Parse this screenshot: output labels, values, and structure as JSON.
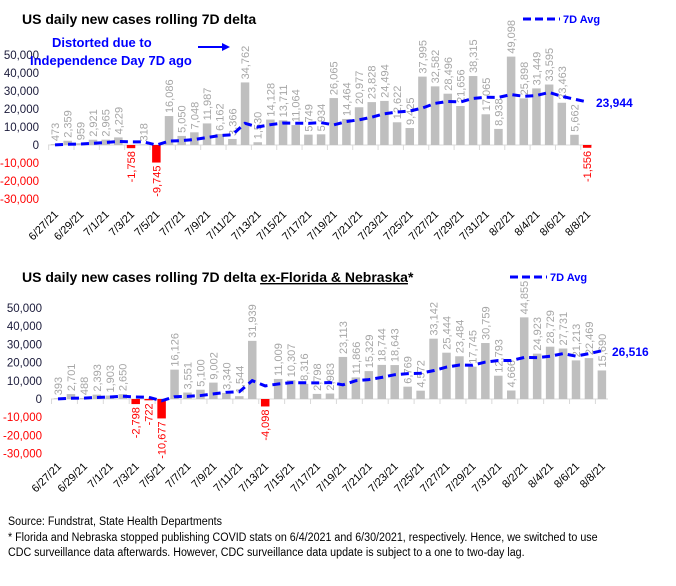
{
  "colors": {
    "positive_bar": "#bfbfbf",
    "negative_bar": "#ff0000",
    "avg_line": "#0000ff",
    "data_label": "#a6a6a6",
    "negative_label": "#ff0000"
  },
  "chart_data": [
    {
      "type": "bar",
      "title": "US daily new cases rolling 7D delta",
      "title_underlined": "",
      "title_suffix": "",
      "annotation": [
        "Distorted due to",
        "Independence Day 7D ago"
      ],
      "legend": "7D Avg",
      "avg_end_label": "23,944",
      "ylim": [
        -30000,
        50000
      ],
      "yticks": [
        "50,000",
        "40,000",
        "30,000",
        "20,000",
        "10,000",
        "0",
        "-10,000",
        "-20,000",
        "-30,000"
      ],
      "ytick_values": [
        50000,
        40000,
        30000,
        20000,
        10000,
        0,
        -10000,
        -20000,
        -30000
      ],
      "categories": [
        "6/27/21",
        "6/28/21",
        "6/29/21",
        "6/30/21",
        "7/1/21",
        "7/2/21",
        "7/3/21",
        "7/4/21",
        "7/5/21",
        "7/6/21",
        "7/7/21",
        "7/8/21",
        "7/9/21",
        "7/10/21",
        "7/11/21",
        "7/12/21",
        "7/13/21",
        "7/14/21",
        "7/15/21",
        "7/16/21",
        "7/17/21",
        "7/18/21",
        "7/19/21",
        "7/20/21",
        "7/21/21",
        "7/22/21",
        "7/23/21",
        "7/24/21",
        "7/25/21",
        "7/26/21",
        "7/27/21",
        "7/28/21",
        "7/29/21",
        "7/30/21",
        "7/31/21",
        "8/1/21",
        "8/2/21",
        "8/3/21",
        "8/4/21",
        "8/5/21",
        "8/6/21",
        "8/7/21",
        "8/8/21"
      ],
      "values": [
        473,
        2359,
        959,
        2921,
        2965,
        4229,
        -1758,
        318,
        -9745,
        16086,
        5050,
        7048,
        11987,
        6162,
        3366,
        34762,
        1530,
        14128,
        13711,
        11064,
        5749,
        5934,
        26065,
        14464,
        20977,
        23828,
        24494,
        12622,
        9425,
        37995,
        32582,
        28496,
        21656,
        38315,
        17065,
        8938,
        49098,
        25898,
        31449,
        33595,
        23463,
        5662,
        -1556
      ],
      "labels": [
        "473",
        "2,359",
        "959",
        "2,921",
        "2,965",
        "4,229",
        "-1,758",
        "318",
        "-9,745",
        "16,086",
        "5,050",
        "7,048",
        "11,987",
        "6,162",
        "3,366",
        "34,762",
        "1,530",
        "14,128",
        "13,711",
        "11,064",
        "5,749",
        "5,934",
        "26,065",
        "14,464",
        "20,977",
        "23,828",
        "24,494",
        "12,622",
        "9,425",
        "37,995",
        "32,582",
        "28,496",
        "21,656",
        "38,315",
        "17,065",
        "8,938",
        "49,098",
        "25,898",
        "31,449",
        "33,595",
        "23,463",
        "5,662",
        "-1,556"
      ]
    },
    {
      "type": "bar",
      "title": "US daily new cases rolling 7D delta ",
      "title_underlined": "ex-Florida & Nebraska",
      "title_suffix": "*",
      "annotation": [],
      "legend": "7D Avg",
      "avg_end_label": "26,516",
      "ylim": [
        -30000,
        50000
      ],
      "yticks": [
        "50,000",
        "40,000",
        "30,000",
        "20,000",
        "10,000",
        "0",
        "-10,000",
        "-20,000",
        "-30,000"
      ],
      "ytick_values": [
        50000,
        40000,
        30000,
        20000,
        10000,
        0,
        -10000,
        -20000,
        -30000
      ],
      "categories": [
        "6/27/21",
        "6/28/21",
        "6/29/21",
        "6/30/21",
        "7/1/21",
        "7/2/21",
        "7/3/21",
        "7/4/21",
        "7/5/21",
        "7/6/21",
        "7/7/21",
        "7/8/21",
        "7/9/21",
        "7/10/21",
        "7/11/21",
        "7/12/21",
        "7/13/21",
        "7/14/21",
        "7/15/21",
        "7/16/21",
        "7/17/21",
        "7/18/21",
        "7/19/21",
        "7/20/21",
        "7/21/21",
        "7/22/21",
        "7/23/21",
        "7/24/21",
        "7/25/21",
        "7/26/21",
        "7/27/21",
        "7/28/21",
        "7/29/21",
        "7/30/21",
        "7/31/21",
        "8/1/21",
        "8/2/21",
        "8/3/21",
        "8/4/21",
        "8/5/21",
        "8/6/21",
        "8/7/21",
        "8/8/21"
      ],
      "values": [
        393,
        2701,
        488,
        2393,
        1903,
        2650,
        -2798,
        -722,
        -10677,
        16126,
        3551,
        5100,
        9002,
        3340,
        1544,
        31939,
        -4098,
        11009,
        10307,
        8316,
        2798,
        2983,
        23113,
        11866,
        15329,
        18744,
        18643,
        6769,
        4572,
        33142,
        25444,
        23484,
        17745,
        30759,
        12793,
        4666,
        44855,
        24923,
        28729,
        27731,
        21213,
        22469,
        15690
      ],
      "labels": [
        "393",
        "2,701",
        "488",
        "2,393",
        "1,903",
        "2,650",
        "-2,798",
        "-722",
        "-10,677",
        "16,126",
        "3,551",
        "5,100",
        "9,002",
        "3,340",
        "1,544",
        "31,939",
        "-4,098",
        "11,009",
        "10,307",
        "8,316",
        "2,798",
        "2,983",
        "23,113",
        "11,866",
        "15,329",
        "18,744",
        "18,643",
        "6,769",
        "4,572",
        "33,142",
        "25,444",
        "23,484",
        "17,745",
        "30,759",
        "12,793",
        "4,666",
        "44,855",
        "24,923",
        "28,729",
        "27,731",
        "21,213",
        "22,469",
        "15,690"
      ]
    }
  ],
  "footer": {
    "source": "Source: Fundstrat, State Health Departments",
    "note": "* Florida and Nebraska  stopped publishing COVID stats on 6/4/2021 and 6/30/2021, respectively. Hence, we switched to use CDC surveillance data afterwards. However, CDC surveillance data update is subject to a one to two-day lag."
  }
}
